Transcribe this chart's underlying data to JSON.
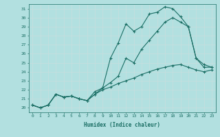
{
  "xlabel": "Humidex (Indice chaleur)",
  "background_color": "#b2e0e0",
  "grid_color": "#c8dede",
  "line_color": "#1a6e64",
  "xlim": [
    -0.5,
    23.5
  ],
  "ylim": [
    19.5,
    31.5
  ],
  "xtick_labels": [
    "0",
    "1",
    "2",
    "3",
    "4",
    "5",
    "6",
    "7",
    "8",
    "9",
    "10",
    "11",
    "12",
    "13",
    "14",
    "15",
    "16",
    "17",
    "18",
    "19",
    "20",
    "21",
    "22",
    "23"
  ],
  "ytick_labels": [
    "20",
    "21",
    "22",
    "23",
    "24",
    "25",
    "26",
    "27",
    "28",
    "29",
    "30",
    "31"
  ],
  "series1": [
    20.3,
    20.0,
    20.3,
    21.5,
    21.2,
    21.3,
    21.0,
    20.8,
    21.5,
    22.2,
    25.5,
    27.2,
    29.3,
    28.5,
    29.0,
    30.4,
    30.6,
    31.2,
    31.0,
    30.1,
    29.0,
    25.5,
    24.8,
    24.5
  ],
  "series2": [
    20.3,
    20.0,
    20.3,
    21.5,
    21.2,
    21.3,
    21.0,
    20.8,
    21.8,
    22.2,
    22.8,
    23.5,
    25.5,
    25.0,
    26.5,
    27.5,
    28.5,
    29.5,
    30.0,
    29.5,
    29.0,
    25.5,
    24.5,
    24.5
  ],
  "series3": [
    20.3,
    20.0,
    20.3,
    21.5,
    21.2,
    21.3,
    21.0,
    20.8,
    21.5,
    22.0,
    22.3,
    22.7,
    23.0,
    23.3,
    23.7,
    24.0,
    24.3,
    24.5,
    24.7,
    24.8,
    24.5,
    24.2,
    24.0,
    24.2
  ]
}
